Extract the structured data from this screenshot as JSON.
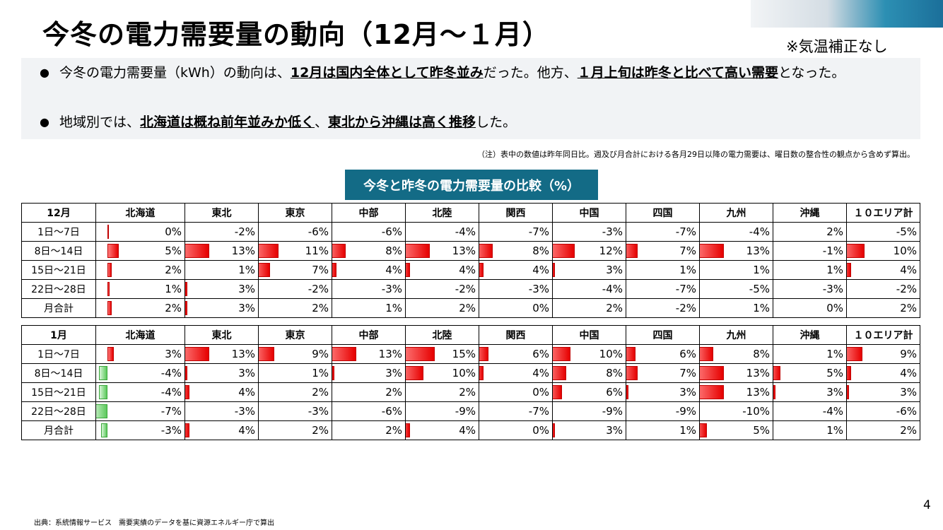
{
  "page": {
    "title": "今冬の電力需要量の動向（12月～１月）",
    "note_right": "※気温補正なし",
    "bullets": [
      [
        {
          "t": "今冬の電力需要量（kWh）の動向は、",
          "b": false
        },
        {
          "t": "12月は国内全体として昨冬並み",
          "b": true
        },
        {
          "t": "だった。他方、",
          "b": false
        },
        {
          "t": "１月上旬は昨冬と比べて高い需要",
          "b": true
        },
        {
          "t": "となった。",
          "b": false
        }
      ],
      [
        {
          "t": "地域別では、",
          "b": false
        },
        {
          "t": "北海道は概ね前年並みか低く",
          "b": true
        },
        {
          "t": "、",
          "b": false
        },
        {
          "t": "東北から沖縄は高く推移",
          "b": true
        },
        {
          "t": "した。",
          "b": false
        }
      ]
    ],
    "footnote": "（注）表中の数値は昨年同日比。週及び月合計における各月29日以降の電力需要は、曜日数の整合性の観点から含めず算出。",
    "page_number": "4",
    "source": "出典：系統情報サービス　需要実績のデータを基に資源エネルギー庁で算出",
    "colors": {
      "positive": "#e60000",
      "negative": "#5cc95c",
      "title_box": "#136b86"
    }
  },
  "chart_data": {
    "type": "table",
    "title": "今冬と昨冬の電力需要量の比較（%）",
    "columns": [
      "北海道",
      "東北",
      "東京",
      "中部",
      "北陸",
      "関西",
      "中国",
      "四国",
      "九州",
      "沖縄",
      "１０エリア計"
    ],
    "tables": [
      {
        "month": "12月",
        "rows": [
          {
            "label": "1日～7日",
            "values": [
              0,
              -2,
              -6,
              -6,
              -4,
              -7,
              -3,
              -7,
              -4,
              2,
              -5
            ]
          },
          {
            "label": "8日～14日",
            "values": [
              5,
              13,
              11,
              8,
              13,
              8,
              12,
              7,
              13,
              -1,
              10
            ]
          },
          {
            "label": "15日～21日",
            "values": [
              2,
              1,
              7,
              4,
              4,
              4,
              3,
              1,
              1,
              1,
              4
            ]
          },
          {
            "label": "22日～28日",
            "values": [
              1,
              3,
              -2,
              -3,
              -2,
              -3,
              -4,
              -7,
              -5,
              -3,
              -2
            ]
          },
          {
            "label": "月合計",
            "values": [
              2,
              3,
              2,
              1,
              2,
              0,
              2,
              -2,
              1,
              0,
              2
            ]
          }
        ]
      },
      {
        "month": "1月",
        "rows": [
          {
            "label": "1日～7日",
            "values": [
              3,
              13,
              9,
              13,
              15,
              6,
              10,
              6,
              8,
              1,
              9
            ]
          },
          {
            "label": "8日～14日",
            "values": [
              -4,
              3,
              1,
              3,
              10,
              4,
              8,
              7,
              13,
              5,
              4
            ]
          },
          {
            "label": "15日～21日",
            "values": [
              -4,
              4,
              2,
              2,
              2,
              0,
              6,
              3,
              13,
              3,
              3
            ]
          },
          {
            "label": "22日～28日",
            "values": [
              -7,
              -3,
              -3,
              -6,
              -9,
              -7,
              -9,
              -9,
              -10,
              -4,
              -6
            ]
          },
          {
            "label": "月合計",
            "values": [
              -3,
              4,
              2,
              2,
              4,
              0,
              3,
              1,
              5,
              1,
              2
            ]
          }
        ]
      }
    ]
  }
}
